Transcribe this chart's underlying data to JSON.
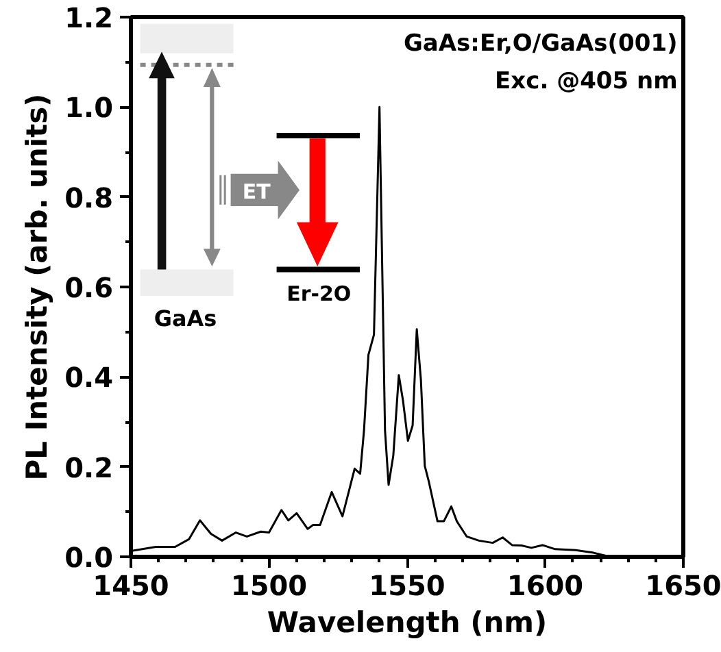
{
  "chart_data": {
    "type": "line",
    "xlabel": "Wavelength (nm)",
    "ylabel": "PL Intensity (arb. units)",
    "x": [
      1450,
      1459,
      1466,
      1471,
      1475,
      1479,
      1483,
      1488,
      1492,
      1497,
      1500,
      1504.5,
      1507,
      1510,
      1514,
      1516,
      1518.5,
      1522.7,
      1526.6,
      1531,
      1533,
      1534.4,
      1536,
      1538,
      1540,
      1542,
      1543.3,
      1545,
      1547,
      1548.5,
      1550.3,
      1552,
      1553.5,
      1555,
      1556.4,
      1557.8,
      1561,
      1563.3,
      1566,
      1568,
      1571.6,
      1576,
      1581,
      1584.6,
      1588,
      1591.5,
      1595,
      1599,
      1603.6,
      1611,
      1617.5,
      1623.5,
      1630,
      1650
    ],
    "series": [
      {
        "color": "#000000",
        "values": [
          0.013,
          0.022,
          0.022,
          0.039,
          0.081,
          0.051,
          0.036,
          0.054,
          0.045,
          0.056,
          0.054,
          0.104,
          0.081,
          0.097,
          0.062,
          0.071,
          0.071,
          0.144,
          0.09,
          0.196,
          0.185,
          0.281,
          0.449,
          0.494,
          1.0,
          0.281,
          0.16,
          0.225,
          0.404,
          0.348,
          0.258,
          0.292,
          0.506,
          0.393,
          0.202,
          0.169,
          0.079,
          0.079,
          0.112,
          0.079,
          0.045,
          0.036,
          0.031,
          0.043,
          0.026,
          0.025,
          0.02,
          0.026,
          0.017,
          0.015,
          0.009,
          0.0,
          0.0,
          0.0
        ]
      }
    ],
    "xlim": [
      1450,
      1650
    ],
    "xticks": [
      1450,
      1500,
      1550,
      1600,
      1650
    ],
    "ylim": [
      0,
      1.2
    ],
    "yticks": [
      {
        "value": 0,
        "label": "0.0"
      },
      {
        "value": 0.2,
        "label": "0.2"
      },
      {
        "value": 0.4,
        "label": "0.4"
      },
      {
        "value": 0.6,
        "label": "0.6"
      },
      {
        "value": 0.8,
        "label": "0.8"
      },
      {
        "value": 1.0,
        "label": "1.0"
      },
      {
        "value": 1.2,
        "label": "1.2"
      }
    ],
    "annotations": [
      "GaAs:Er,O/GaAs(001)",
      "Exc. @405 nm",
      "GaAs",
      "ET",
      "Er-2O"
    ],
    "grid": false,
    "marker": "none",
    "line_style": "solid"
  }
}
